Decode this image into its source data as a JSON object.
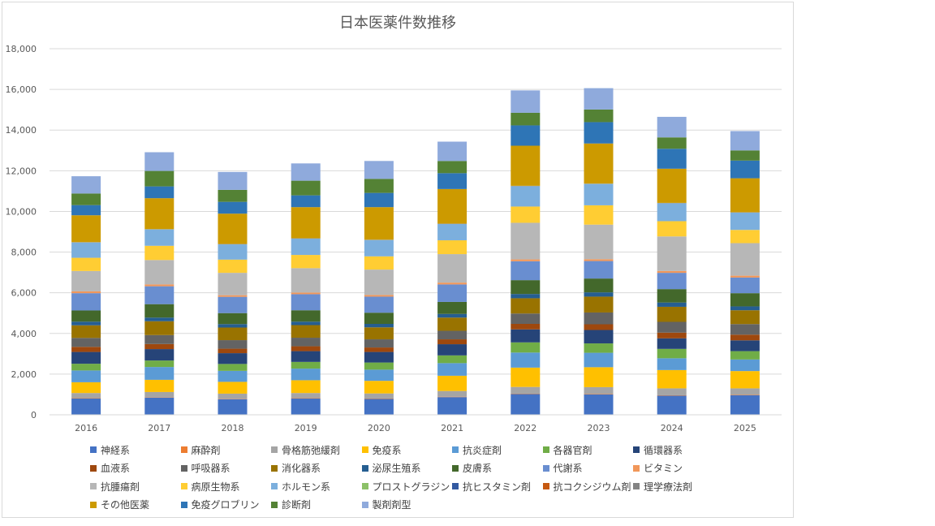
{
  "chart_data": {
    "type": "bar",
    "stacked": true,
    "title": "日本医薬件数推移",
    "xlabel": "",
    "ylabel": "",
    "ylim": [
      0,
      18000
    ],
    "yticks": [
      "0",
      "2,000",
      "4,000",
      "6,000",
      "8,000",
      "10,000",
      "12,000",
      "14,000",
      "16,000",
      "18,000"
    ],
    "grid": true,
    "legend_position": "bottom",
    "categories": [
      "2016",
      "2017",
      "2018",
      "2019",
      "2020",
      "2021",
      "2022",
      "2023",
      "2024",
      "2025"
    ],
    "series": [
      {
        "name": "神経系",
        "color": "#4472C4",
        "values": [
          800,
          850,
          770,
          800,
          780,
          870,
          1020,
          1000,
          940,
          960
        ]
      },
      {
        "name": "麻酔剤",
        "color": "#ED7D31",
        "values": [
          20,
          20,
          20,
          20,
          20,
          20,
          20,
          20,
          20,
          20
        ]
      },
      {
        "name": "骨格筋弛緩剤",
        "color": "#A5A5A5",
        "values": [
          250,
          250,
          250,
          250,
          250,
          280,
          330,
          340,
          340,
          320
        ]
      },
      {
        "name": "免疫系",
        "color": "#FFC000",
        "values": [
          530,
          600,
          580,
          630,
          620,
          750,
          950,
          980,
          900,
          850
        ]
      },
      {
        "name": "抗炎症剤",
        "color": "#5B9BD5",
        "values": [
          580,
          630,
          540,
          570,
          550,
          620,
          740,
          710,
          580,
          570
        ]
      },
      {
        "name": "各器官剤",
        "color": "#70AD47",
        "values": [
          330,
          320,
          340,
          330,
          350,
          380,
          500,
          460,
          460,
          410
        ]
      },
      {
        "name": "循環器系",
        "color": "#264478",
        "values": [
          580,
          560,
          530,
          530,
          520,
          550,
          640,
          660,
          520,
          530
        ]
      },
      {
        "name": "血液系",
        "color": "#9E480E",
        "values": [
          250,
          250,
          220,
          240,
          220,
          240,
          270,
          280,
          280,
          280
        ]
      },
      {
        "name": "呼吸器系",
        "color": "#636363",
        "values": [
          440,
          440,
          420,
          420,
          400,
          420,
          510,
          580,
          530,
          520
        ]
      },
      {
        "name": "消化器系",
        "color": "#997300",
        "values": [
          620,
          680,
          620,
          620,
          590,
          650,
          750,
          780,
          740,
          680
        ]
      },
      {
        "name": "泌尿生殖系",
        "color": "#255E91",
        "values": [
          180,
          180,
          170,
          170,
          170,
          180,
          210,
          210,
          210,
          190
        ]
      },
      {
        "name": "皮膚系",
        "color": "#43682B",
        "values": [
          550,
          660,
          540,
          560,
          550,
          590,
          680,
          680,
          660,
          650
        ]
      },
      {
        "name": "代謝系",
        "color": "#698ED0",
        "values": [
          850,
          880,
          800,
          790,
          790,
          860,
          930,
          860,
          800,
          770
        ]
      },
      {
        "name": "ビタミン",
        "color": "#F1975A",
        "values": [
          90,
          90,
          80,
          80,
          80,
          90,
          90,
          90,
          90,
          90
        ]
      },
      {
        "name": "抗腫瘍剤",
        "color": "#B7B7B7",
        "values": [
          1000,
          1200,
          1100,
          1200,
          1250,
          1400,
          1800,
          1700,
          1700,
          1600
        ]
      },
      {
        "name": "病原生物系",
        "color": "#FFCD33",
        "values": [
          650,
          700,
          650,
          650,
          650,
          680,
          800,
          950,
          750,
          650
        ]
      },
      {
        "name": "ホルモン系",
        "color": "#7CAFDD",
        "values": [
          750,
          800,
          750,
          800,
          800,
          800,
          1000,
          1050,
          880,
          850
        ]
      },
      {
        "name": "プロストグラジン",
        "color": "#8CC168",
        "values": [
          5,
          5,
          5,
          5,
          5,
          5,
          5,
          5,
          5,
          5
        ]
      },
      {
        "name": "抗ヒスタミン剤",
        "color": "#335AA1",
        "values": [
          5,
          5,
          5,
          5,
          5,
          5,
          5,
          5,
          5,
          5
        ]
      },
      {
        "name": "抗コクシジウム剤",
        "color": "#C65911",
        "values": [
          5,
          5,
          5,
          5,
          5,
          5,
          5,
          5,
          5,
          5
        ]
      },
      {
        "name": "理学療法剤",
        "color": "#848484",
        "values": [
          5,
          5,
          5,
          5,
          5,
          5,
          5,
          5,
          5,
          5
        ]
      },
      {
        "name": "その他医薬",
        "color": "#CC9A00",
        "values": [
          1320,
          1520,
          1490,
          1530,
          1600,
          1700,
          1970,
          1970,
          1680,
          1670
        ]
      },
      {
        "name": "免疫グロブリン",
        "color": "#2E75B6",
        "values": [
          500,
          580,
          580,
          580,
          700,
          780,
          1000,
          1050,
          980,
          870
        ]
      },
      {
        "name": "診断剤",
        "color": "#548235",
        "values": [
          570,
          760,
          590,
          720,
          690,
          600,
          620,
          620,
          560,
          500
        ]
      },
      {
        "name": "製剤剤型",
        "color": "#8FAADC",
        "values": [
          850,
          920,
          880,
          850,
          880,
          950,
          1100,
          1050,
          1010,
          950
        ]
      }
    ]
  }
}
